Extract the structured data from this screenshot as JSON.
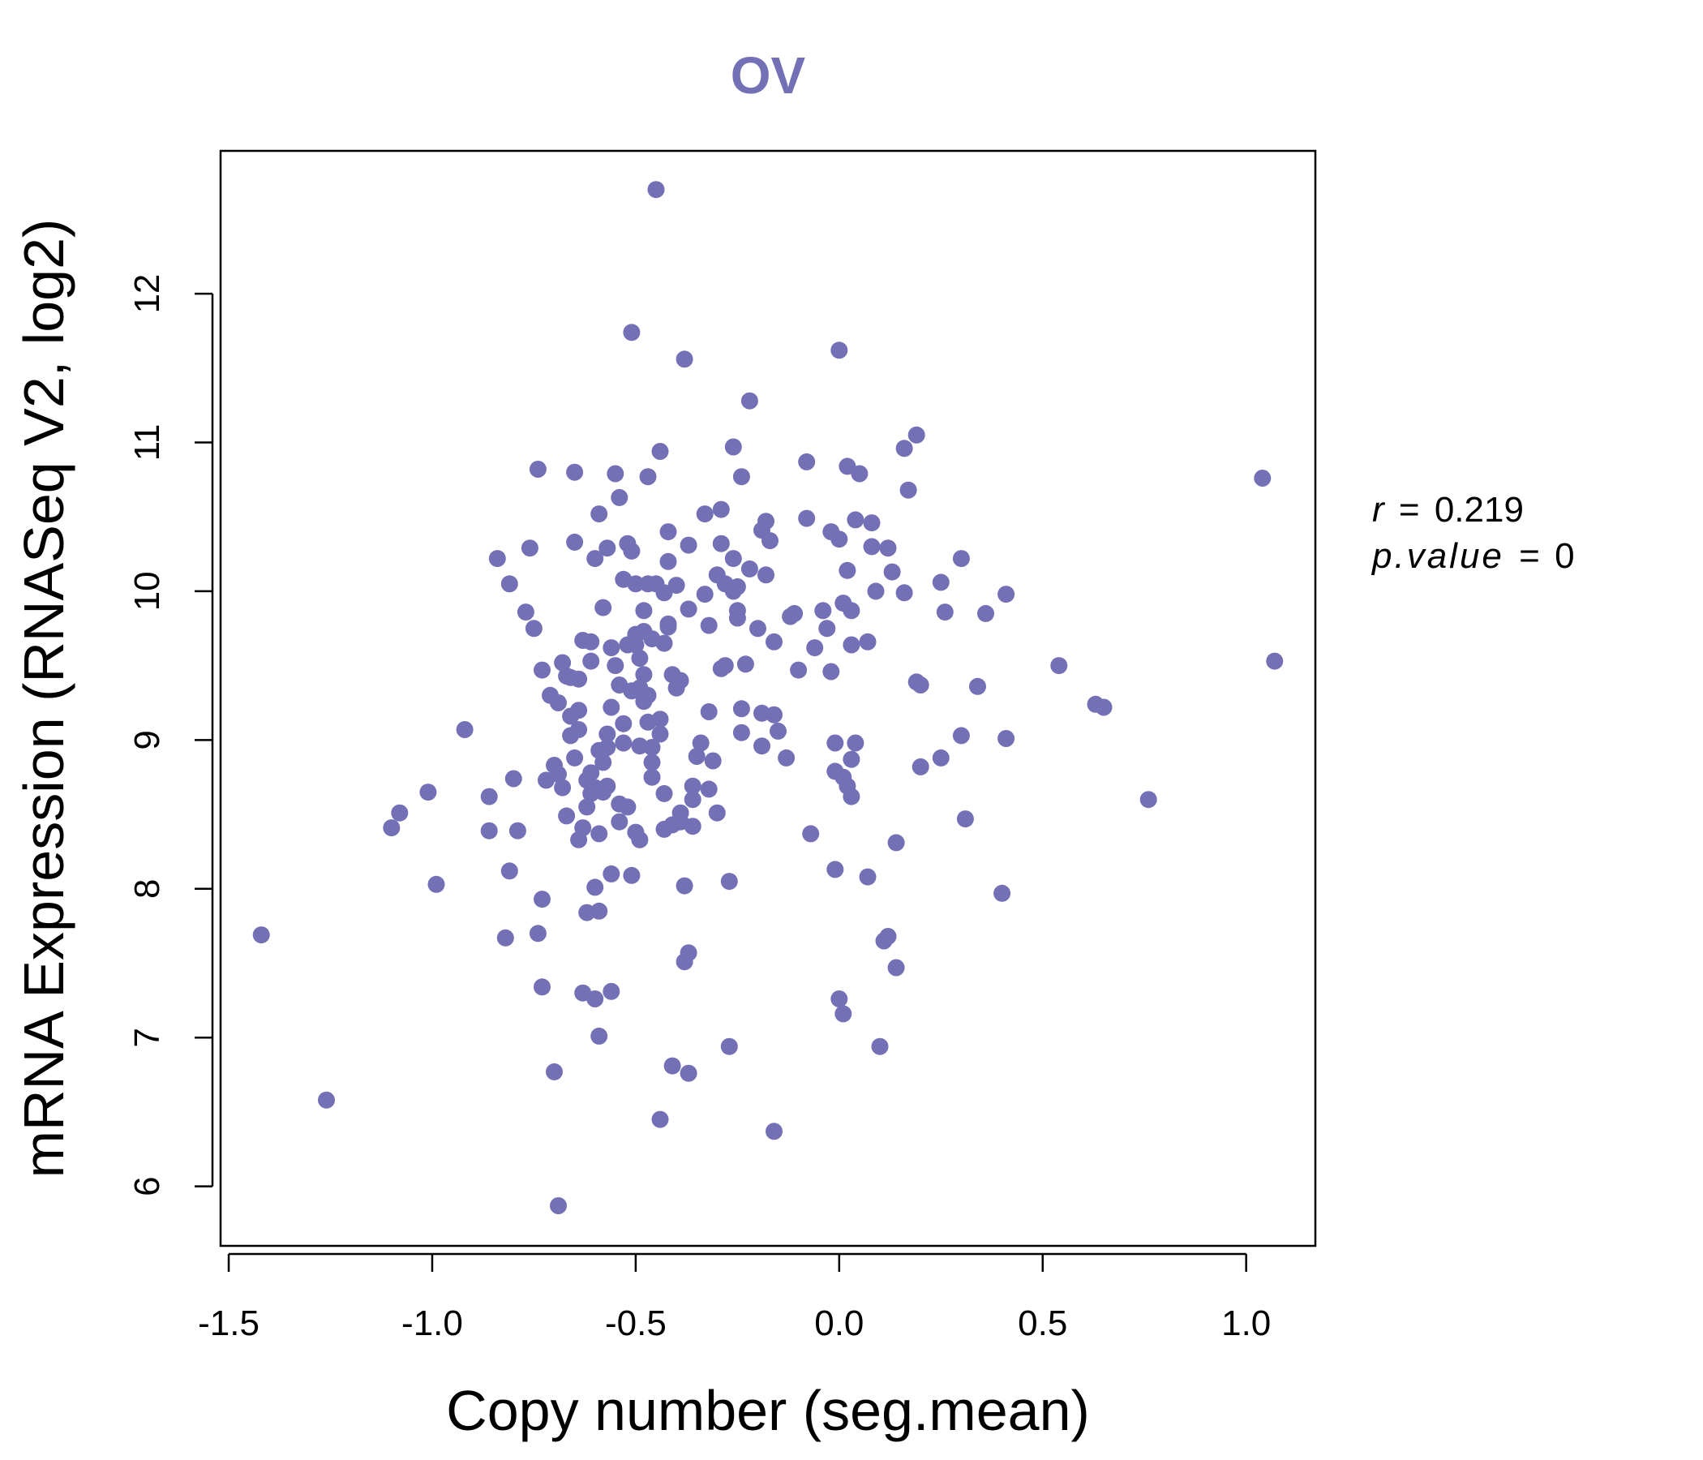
{
  "chart_data": {
    "type": "scatter",
    "title": "OV",
    "xlabel": "Copy number (seg.mean)",
    "ylabel": "mRNA Expression (RNASeq V2, log2)",
    "xlim": [
      -1.52,
      1.17
    ],
    "ylim": [
      5.6,
      12.96
    ],
    "x_ticks": [
      -1.5,
      -1.0,
      -0.5,
      0.0,
      0.5,
      1.0
    ],
    "x_tick_labels": [
      "-1.5",
      "-1.0",
      "-0.5",
      "0.0",
      "0.5",
      "1.0"
    ],
    "y_ticks": [
      6,
      7,
      8,
      9,
      10,
      11,
      12
    ],
    "y_tick_labels": [
      "6",
      "7",
      "8",
      "9",
      "10",
      "11",
      "12"
    ],
    "grid": false,
    "point_color": "#7470b5",
    "title_color": "#7470b5",
    "annotation": {
      "r_label": "r",
      "r_value": "0.219",
      "p_label": "p.value",
      "p_value": "0",
      "equals": "="
    },
    "points": [
      [
        -1.42,
        7.69
      ],
      [
        -1.26,
        6.58
      ],
      [
        -1.1,
        8.41
      ],
      [
        -1.08,
        8.51
      ],
      [
        -1.01,
        8.65
      ],
      [
        -0.99,
        8.03
      ],
      [
        -0.92,
        9.07
      ],
      [
        -0.86,
        8.39
      ],
      [
        -0.86,
        8.62
      ],
      [
        -0.84,
        10.22
      ],
      [
        -0.82,
        7.67
      ],
      [
        -0.81,
        8.12
      ],
      [
        -0.81,
        10.05
      ],
      [
        -0.8,
        8.74
      ],
      [
        -0.79,
        8.39
      ],
      [
        -0.77,
        9.86
      ],
      [
        -0.76,
        10.29
      ],
      [
        -0.75,
        9.75
      ],
      [
        -0.74,
        7.7
      ],
      [
        -0.74,
        10.82
      ],
      [
        -0.73,
        7.34
      ],
      [
        -0.73,
        7.93
      ],
      [
        -0.73,
        9.47
      ],
      [
        -0.72,
        8.73
      ],
      [
        -0.71,
        9.3
      ],
      [
        -0.7,
        8.83
      ],
      [
        -0.7,
        6.77
      ],
      [
        -0.69,
        5.87
      ],
      [
        -0.69,
        8.77
      ],
      [
        -0.69,
        9.25
      ],
      [
        -0.68,
        9.52
      ],
      [
        -0.68,
        8.68
      ],
      [
        -0.67,
        8.49
      ],
      [
        -0.67,
        9.43
      ],
      [
        -0.66,
        9.03
      ],
      [
        -0.66,
        9.16
      ],
      [
        -0.66,
        9.42
      ],
      [
        -0.65,
        10.8
      ],
      [
        -0.65,
        10.33
      ],
      [
        -0.65,
        8.88
      ],
      [
        -0.64,
        8.33
      ],
      [
        -0.64,
        9.07
      ],
      [
        -0.64,
        9.2
      ],
      [
        -0.64,
        9.41
      ],
      [
        -0.63,
        9.67
      ],
      [
        -0.63,
        7.3
      ],
      [
        -0.63,
        8.41
      ],
      [
        -0.62,
        8.55
      ],
      [
        -0.62,
        7.84
      ],
      [
        -0.62,
        8.73
      ],
      [
        -0.61,
        8.64
      ],
      [
        -0.61,
        9.53
      ],
      [
        -0.61,
        9.66
      ],
      [
        -0.61,
        8.78
      ],
      [
        -0.6,
        10.22
      ],
      [
        -0.6,
        7.26
      ],
      [
        -0.6,
        8.68
      ],
      [
        -0.6,
        8.01
      ],
      [
        -0.59,
        7.01
      ],
      [
        -0.59,
        7.85
      ],
      [
        -0.59,
        8.37
      ],
      [
        -0.59,
        8.93
      ],
      [
        -0.59,
        10.52
      ],
      [
        -0.58,
        9.89
      ],
      [
        -0.58,
        8.85
      ],
      [
        -0.58,
        8.65
      ],
      [
        -0.57,
        9.04
      ],
      [
        -0.57,
        8.95
      ],
      [
        -0.57,
        8.69
      ],
      [
        -0.57,
        10.29
      ],
      [
        -0.56,
        7.31
      ],
      [
        -0.56,
        8.1
      ],
      [
        -0.56,
        9.22
      ],
      [
        -0.56,
        9.62
      ],
      [
        -0.55,
        10.79
      ],
      [
        -0.55,
        9.5
      ],
      [
        -0.54,
        8.57
      ],
      [
        -0.54,
        9.37
      ],
      [
        -0.54,
        10.63
      ],
      [
        -0.54,
        8.45
      ],
      [
        -0.53,
        10.08
      ],
      [
        -0.53,
        9.11
      ],
      [
        -0.53,
        8.98
      ],
      [
        -0.52,
        10.32
      ],
      [
        -0.52,
        8.55
      ],
      [
        -0.52,
        9.64
      ],
      [
        -0.51,
        11.74
      ],
      [
        -0.51,
        10.27
      ],
      [
        -0.51,
        8.09
      ],
      [
        -0.51,
        9.33
      ],
      [
        -0.5,
        9.64
      ],
      [
        -0.5,
        8.38
      ],
      [
        -0.5,
        9.71
      ],
      [
        -0.5,
        10.05
      ],
      [
        -0.49,
        9.35
      ],
      [
        -0.49,
        8.33
      ],
      [
        -0.49,
        8.96
      ],
      [
        -0.49,
        9.55
      ],
      [
        -0.48,
        9.26
      ],
      [
        -0.48,
        9.44
      ],
      [
        -0.48,
        9.87
      ],
      [
        -0.48,
        9.73
      ],
      [
        -0.47,
        10.77
      ],
      [
        -0.47,
        9.12
      ],
      [
        -0.47,
        9.3
      ],
      [
        -0.47,
        10.05
      ],
      [
        -0.46,
        8.85
      ],
      [
        -0.46,
        9.68
      ],
      [
        -0.46,
        8.95
      ],
      [
        -0.46,
        8.75
      ],
      [
        -0.45,
        12.7
      ],
      [
        -0.45,
        10.05
      ],
      [
        -0.44,
        10.94
      ],
      [
        -0.44,
        9.14
      ],
      [
        -0.44,
        9.04
      ],
      [
        -0.44,
        6.45
      ],
      [
        -0.43,
        9.65
      ],
      [
        -0.43,
        9.99
      ],
      [
        -0.43,
        8.64
      ],
      [
        -0.43,
        8.4
      ],
      [
        -0.42,
        9.78
      ],
      [
        -0.42,
        10.4
      ],
      [
        -0.42,
        10.2
      ],
      [
        -0.42,
        9.76
      ],
      [
        -0.41,
        6.81
      ],
      [
        -0.41,
        8.43
      ],
      [
        -0.41,
        9.44
      ],
      [
        -0.4,
        9.35
      ],
      [
        -0.4,
        10.04
      ],
      [
        -0.39,
        8.51
      ],
      [
        -0.39,
        8.45
      ],
      [
        -0.39,
        9.4
      ],
      [
        -0.38,
        11.56
      ],
      [
        -0.38,
        7.51
      ],
      [
        -0.38,
        8.02
      ],
      [
        -0.37,
        7.57
      ],
      [
        -0.37,
        6.76
      ],
      [
        -0.37,
        9.88
      ],
      [
        -0.37,
        10.31
      ],
      [
        -0.36,
        8.6
      ],
      [
        -0.36,
        8.42
      ],
      [
        -0.36,
        8.69
      ],
      [
        -0.35,
        8.89
      ],
      [
        -0.34,
        8.98
      ],
      [
        -0.33,
        9.98
      ],
      [
        -0.33,
        10.52
      ],
      [
        -0.32,
        9.77
      ],
      [
        -0.32,
        9.19
      ],
      [
        -0.32,
        8.67
      ],
      [
        -0.31,
        8.86
      ],
      [
        -0.3,
        8.51
      ],
      [
        -0.3,
        10.11
      ],
      [
        -0.29,
        10.55
      ],
      [
        -0.29,
        10.32
      ],
      [
        -0.29,
        9.48
      ],
      [
        -0.28,
        10.05
      ],
      [
        -0.28,
        9.5
      ],
      [
        -0.27,
        6.94
      ],
      [
        -0.27,
        8.05
      ],
      [
        -0.26,
        10.22
      ],
      [
        -0.26,
        10.97
      ],
      [
        -0.26,
        10.0
      ],
      [
        -0.25,
        10.03
      ],
      [
        -0.25,
        9.82
      ],
      [
        -0.25,
        9.87
      ],
      [
        -0.24,
        9.21
      ],
      [
        -0.24,
        9.05
      ],
      [
        -0.24,
        10.77
      ],
      [
        -0.23,
        9.51
      ],
      [
        -0.22,
        10.15
      ],
      [
        -0.22,
        11.28
      ],
      [
        -0.2,
        9.75
      ],
      [
        -0.19,
        10.41
      ],
      [
        -0.19,
        8.96
      ],
      [
        -0.19,
        9.18
      ],
      [
        -0.18,
        10.47
      ],
      [
        -0.18,
        10.11
      ],
      [
        -0.17,
        10.34
      ],
      [
        -0.16,
        9.17
      ],
      [
        -0.16,
        9.66
      ],
      [
        -0.16,
        6.37
      ],
      [
        -0.15,
        9.06
      ],
      [
        -0.13,
        8.88
      ],
      [
        -0.12,
        9.83
      ],
      [
        -0.11,
        9.85
      ],
      [
        -0.1,
        9.47
      ],
      [
        -0.08,
        10.87
      ],
      [
        -0.08,
        10.49
      ],
      [
        -0.07,
        8.37
      ],
      [
        -0.06,
        9.62
      ],
      [
        -0.04,
        9.87
      ],
      [
        -0.03,
        9.75
      ],
      [
        -0.02,
        9.46
      ],
      [
        -0.02,
        10.4
      ],
      [
        -0.01,
        8.98
      ],
      [
        -0.01,
        8.13
      ],
      [
        -0.01,
        8.79
      ],
      [
        0.0,
        7.26
      ],
      [
        0.0,
        10.35
      ],
      [
        0.0,
        11.62
      ],
      [
        0.01,
        8.75
      ],
      [
        0.01,
        7.16
      ],
      [
        0.01,
        9.92
      ],
      [
        0.02,
        8.69
      ],
      [
        0.02,
        10.84
      ],
      [
        0.02,
        10.14
      ],
      [
        0.03,
        8.62
      ],
      [
        0.03,
        9.64
      ],
      [
        0.03,
        9.87
      ],
      [
        0.03,
        8.87
      ],
      [
        0.04,
        8.98
      ],
      [
        0.04,
        10.48
      ],
      [
        0.05,
        10.79
      ],
      [
        0.07,
        9.66
      ],
      [
        0.07,
        8.08
      ],
      [
        0.08,
        10.3
      ],
      [
        0.08,
        10.46
      ],
      [
        0.09,
        10.0
      ],
      [
        0.1,
        6.94
      ],
      [
        0.11,
        7.65
      ],
      [
        0.12,
        10.29
      ],
      [
        0.12,
        7.68
      ],
      [
        0.13,
        10.13
      ],
      [
        0.14,
        7.47
      ],
      [
        0.14,
        8.31
      ],
      [
        0.16,
        10.96
      ],
      [
        0.16,
        9.99
      ],
      [
        0.17,
        10.68
      ],
      [
        0.19,
        11.05
      ],
      [
        0.19,
        9.39
      ],
      [
        0.2,
        8.82
      ],
      [
        0.2,
        9.37
      ],
      [
        0.25,
        8.88
      ],
      [
        0.25,
        10.06
      ],
      [
        0.26,
        9.86
      ],
      [
        0.3,
        9.03
      ],
      [
        0.3,
        10.22
      ],
      [
        0.31,
        8.47
      ],
      [
        0.34,
        9.36
      ],
      [
        0.36,
        9.85
      ],
      [
        0.4,
        7.97
      ],
      [
        0.41,
        9.98
      ],
      [
        0.41,
        9.01
      ],
      [
        0.54,
        9.5
      ],
      [
        0.63,
        9.24
      ],
      [
        0.65,
        9.22
      ],
      [
        0.76,
        8.6
      ],
      [
        1.04,
        10.76
      ],
      [
        1.07,
        9.53
      ]
    ]
  }
}
